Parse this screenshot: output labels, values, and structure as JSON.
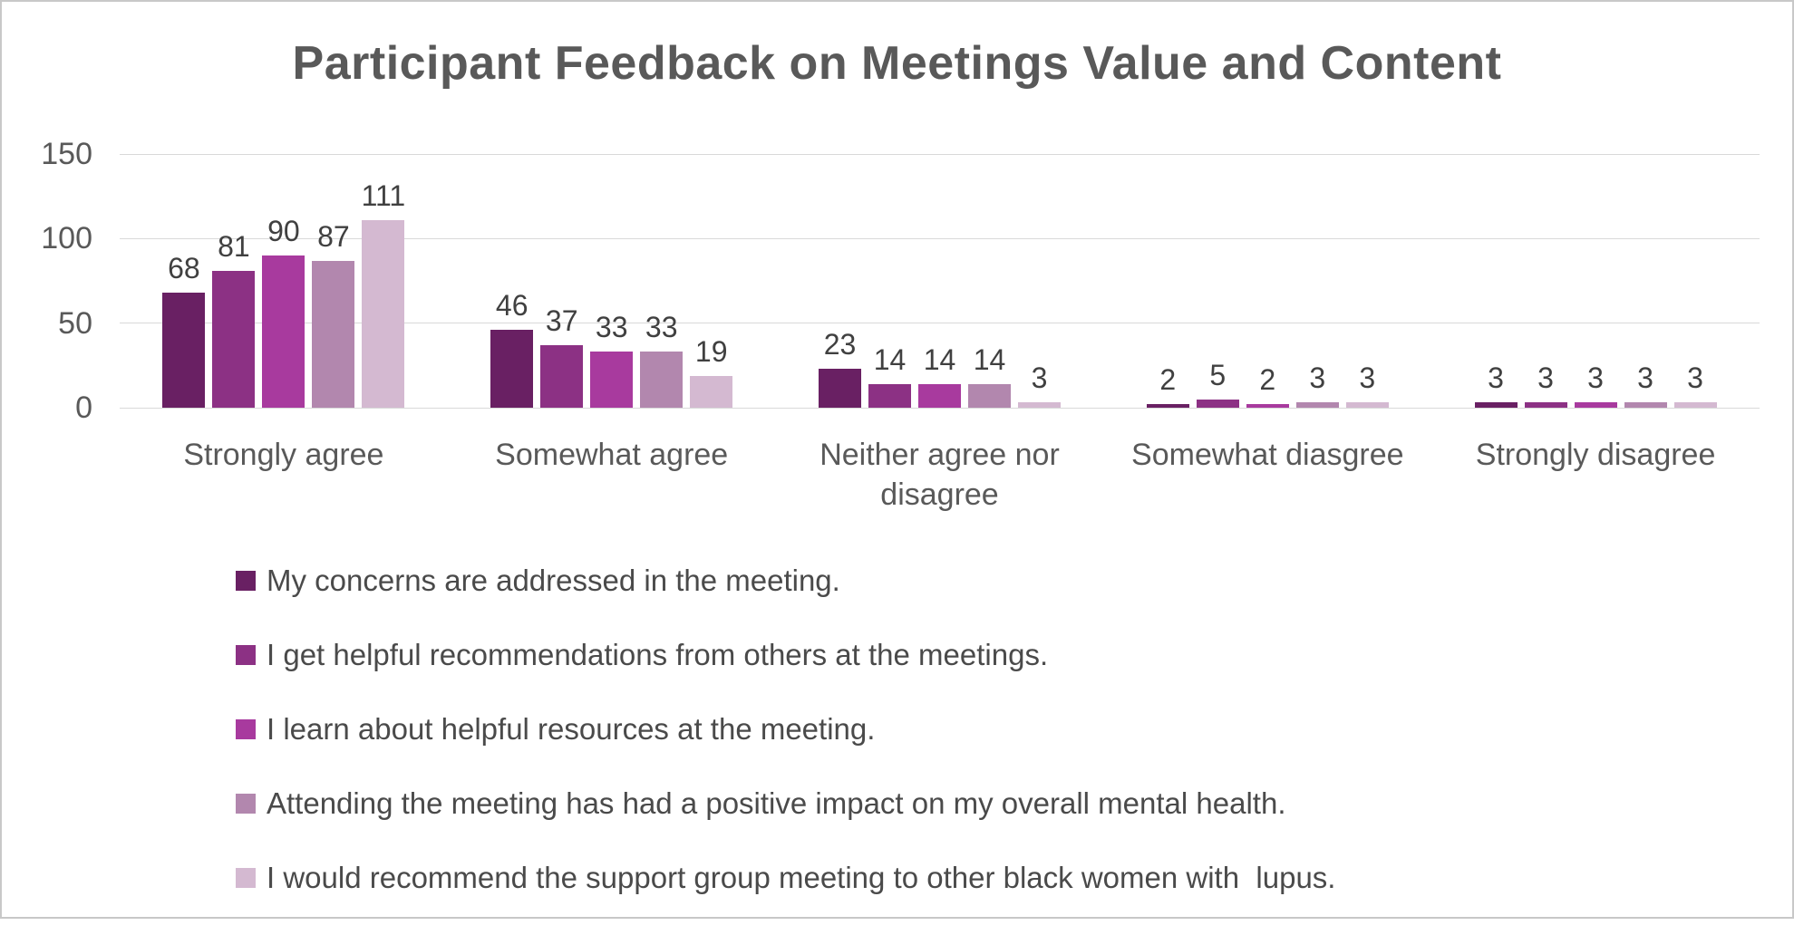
{
  "chart": {
    "colors": {
      "background": "#ffffff",
      "border": "#c8c8c8",
      "title": "#595959",
      "axis_text": "#595959",
      "data_label": "#404040",
      "legend_text": "#4a4a4a",
      "grid": "#d9d9d9"
    }
  },
  "chart_data": {
    "type": "bar",
    "title": "Participant Feedback on Meetings Value and Content",
    "categories": [
      "Strongly agree",
      "Somewhat agree",
      "Neither agree nor disagree",
      "Somewhat diasgree",
      "Strongly disagree"
    ],
    "series": [
      {
        "name": "My concerns are addressed in the meeting.",
        "color": "#692063",
        "values": [
          68,
          46,
          23,
          2,
          3
        ]
      },
      {
        "name": "I get helpful recommendations from others at the meetings.",
        "color": "#8c3184",
        "values": [
          81,
          37,
          14,
          5,
          3
        ]
      },
      {
        "name": "I learn about helpful resources at the meeting.",
        "color": "#a83a9e",
        "values": [
          90,
          33,
          14,
          2,
          3
        ]
      },
      {
        "name": "Attending the meeting has had a positive impact on my overall mental health.",
        "color": "#b287ae",
        "values": [
          87,
          33,
          14,
          3,
          3
        ]
      },
      {
        "name": "I would recommend the support group meeting to other black women with  lupus.",
        "color": "#d4b9d1",
        "values": [
          111,
          19,
          3,
          3,
          3
        ]
      }
    ],
    "xlabel": "",
    "ylabel": "",
    "ylim": [
      0,
      150
    ],
    "yticks": [
      0,
      50,
      100,
      150
    ],
    "grid": true,
    "legend_position": "bottom-left"
  }
}
